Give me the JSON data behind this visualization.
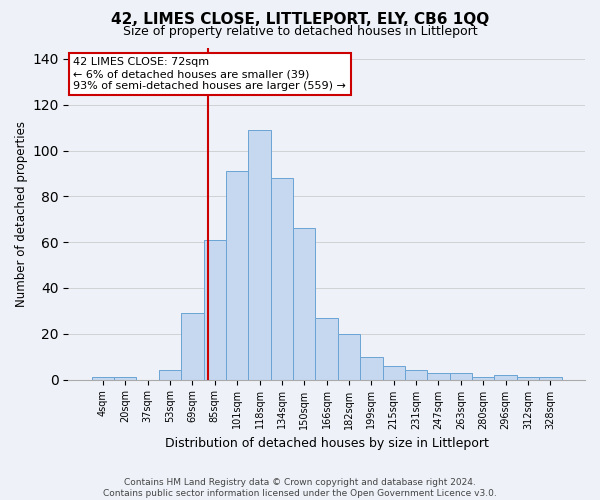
{
  "title": "42, LIMES CLOSE, LITTLEPORT, ELY, CB6 1QQ",
  "subtitle": "Size of property relative to detached houses in Littleport",
  "xlabel": "Distribution of detached houses by size in Littleport",
  "ylabel": "Number of detached properties",
  "categories": [
    "4sqm",
    "20sqm",
    "37sqm",
    "53sqm",
    "69sqm",
    "85sqm",
    "101sqm",
    "118sqm",
    "134sqm",
    "150sqm",
    "166sqm",
    "182sqm",
    "199sqm",
    "215sqm",
    "231sqm",
    "247sqm",
    "263sqm",
    "280sqm",
    "296sqm",
    "312sqm",
    "328sqm"
  ],
  "values": [
    1,
    1,
    0,
    4,
    29,
    61,
    91,
    109,
    88,
    66,
    27,
    20,
    10,
    6,
    4,
    3,
    3,
    1,
    2,
    1,
    1
  ],
  "bar_color": "#c5d8f0",
  "bar_edge_color": "#6aa3d4",
  "red_line_x": 4.68,
  "annotation_line1": "42 LIMES CLOSE: 72sqm",
  "annotation_line2": "← 6% of detached houses are smaller (39)",
  "annotation_line3": "93% of semi-detached houses are larger (559) →",
  "annotation_box_color": "#ffffff",
  "annotation_box_edge_color": "#cc0000",
  "ylim": [
    0,
    145
  ],
  "footer_line1": "Contains HM Land Registry data © Crown copyright and database right 2024.",
  "footer_line2": "Contains public sector information licensed under the Open Government Licence v3.0.",
  "bg_color": "#eef2f8",
  "plot_bg_color": "#eef2f8"
}
